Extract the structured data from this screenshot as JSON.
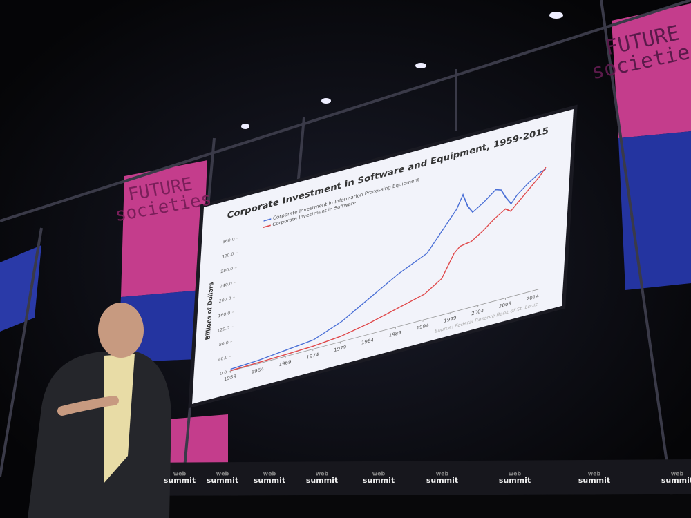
{
  "chart_data": {
    "type": "line",
    "title": "Corporate Investment in Software and Equipment, 1959-2015",
    "y_label": "Billions of Dollars",
    "source": "Source: Federal Reserve Bank of St. Louis",
    "x": [
      1959,
      1964,
      1969,
      1974,
      1979,
      1984,
      1989,
      1994,
      1997,
      1999,
      2000,
      2001,
      2002,
      2004,
      2006,
      2007,
      2008,
      2009,
      2010,
      2012,
      2014,
      2015
    ],
    "series": [
      {
        "name": "Corporate Investment in Information Processing Equipment",
        "color": "#4a6fd6",
        "values": [
          5,
          9,
          17,
          25,
          55,
          100,
          145,
          180,
          240,
          280,
          315,
          280,
          260,
          280,
          305,
          300,
          275,
          255,
          275,
          300,
          320,
          325
        ]
      },
      {
        "name": "Corporate Investment in Software",
        "color": "#e0484a",
        "values": [
          1,
          3,
          5,
          8,
          15,
          30,
          50,
          70,
          100,
          160,
          175,
          178,
          180,
          200,
          225,
          235,
          245,
          235,
          250,
          280,
          310,
          330
        ]
      }
    ],
    "xlim": [
      1959,
      2015
    ],
    "xticks": [
      1959,
      1964,
      1969,
      1974,
      1979,
      1984,
      1989,
      1994,
      1999,
      2004,
      2009,
      2014
    ],
    "ylim": [
      0,
      360
    ],
    "yticks": [
      {
        "value": 0,
        "label": "0.0"
      },
      {
        "value": 40,
        "label": "40.0"
      },
      {
        "value": 80,
        "label": "80.0"
      },
      {
        "value": 120,
        "label": "120.0"
      },
      {
        "value": 160,
        "label": "160.0"
      },
      {
        "value": 200,
        "label": "200.0"
      },
      {
        "value": 240,
        "label": "240.0"
      },
      {
        "value": 280,
        "label": "280.0"
      },
      {
        "value": 320,
        "label": "320.0"
      },
      {
        "value": 360,
        "label": "360.0"
      }
    ]
  },
  "scene": {
    "banner": [
      "FUTURE",
      "societies"
    ],
    "logo": [
      "web",
      "summit"
    ]
  }
}
